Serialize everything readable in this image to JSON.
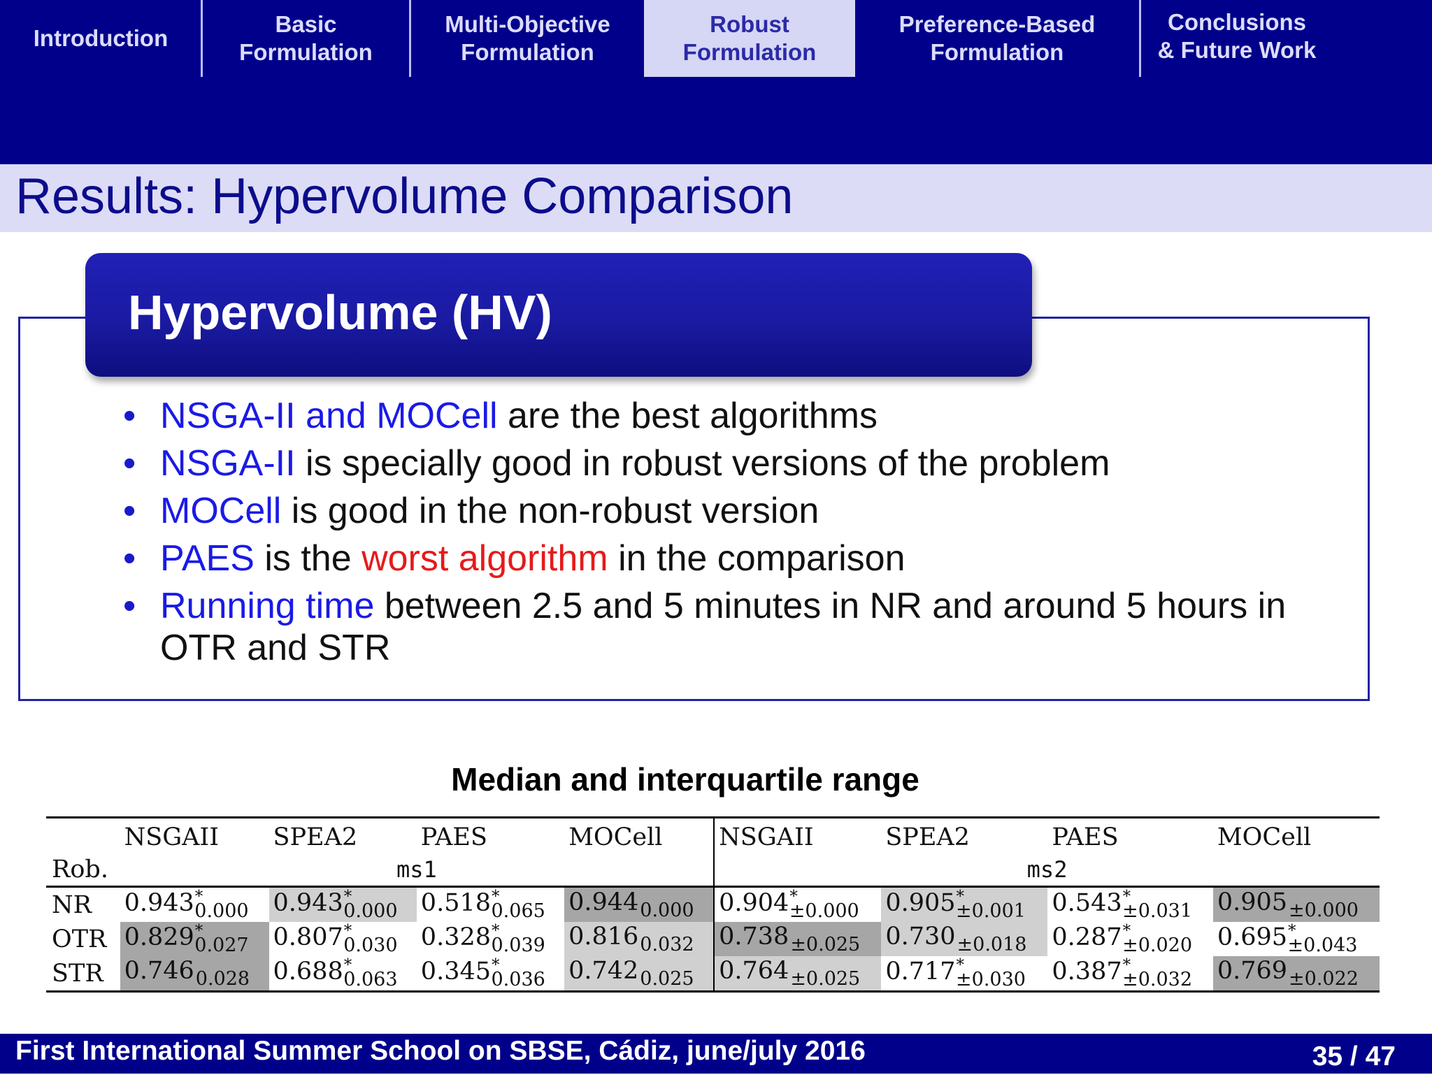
{
  "nav": {
    "tabs": [
      {
        "lines": [
          "Introduction"
        ]
      },
      {
        "lines": [
          "Basic",
          "Formulation"
        ]
      },
      {
        "lines": [
          "Multi-Objective",
          "Formulation"
        ]
      },
      {
        "lines": [
          "Robust",
          "Formulation"
        ],
        "active": true
      },
      {
        "lines": [
          "Preference-Based",
          "Formulation"
        ]
      },
      {
        "lines": [
          "Conclusions",
          "& Future Work"
        ]
      }
    ]
  },
  "slide": {
    "title": "Results: Hypervolume Comparison",
    "block_title": "Hypervolume (HV)",
    "bullets": [
      {
        "parts": [
          {
            "t": "NSGA-II and MOCell",
            "c": "blue"
          },
          {
            "t": " are the best algorithms"
          }
        ]
      },
      {
        "parts": [
          {
            "t": "NSGA-II",
            "c": "blue"
          },
          {
            "t": " is specially good in robust versions of the problem"
          }
        ]
      },
      {
        "parts": [
          {
            "t": "MOCell",
            "c": "blue"
          },
          {
            "t": " is good in the non-robust version"
          }
        ]
      },
      {
        "parts": [
          {
            "t": "PAES",
            "c": "blue"
          },
          {
            "t": " is the "
          },
          {
            "t": "worst algorithm",
            "c": "red"
          },
          {
            "t": " in the comparison"
          }
        ]
      },
      {
        "parts": [
          {
            "t": "Running time",
            "c": "blue"
          },
          {
            "t": " between 2.5 and 5 minutes in NR and around 5 hours in OTR and STR"
          }
        ]
      }
    ]
  },
  "table": {
    "caption": "Median and interquartile range",
    "columns": [
      "NSGAII",
      "SPEA2",
      "PAES",
      "MOCell",
      "NSGAII",
      "SPEA2",
      "PAES",
      "MOCell"
    ],
    "row_header_label": "Rob.",
    "groups": [
      "ms1",
      "ms2"
    ],
    "rows": [
      {
        "label": "NR",
        "cells": [
          {
            "v": "0.943",
            "star": true,
            "iqr": "0.000",
            "shade": 0
          },
          {
            "v": "0.943",
            "star": true,
            "iqr": "0.000",
            "shade": 1
          },
          {
            "v": "0.518",
            "star": true,
            "iqr": "0.065",
            "shade": 0
          },
          {
            "v": "0.944",
            "star": false,
            "iqr": "0.000",
            "shade": 2
          },
          {
            "v": "0.904",
            "star": true,
            "iqr": "±0.000",
            "shade": 0
          },
          {
            "v": "0.905",
            "star": true,
            "iqr": "±0.001",
            "shade": 1
          },
          {
            "v": "0.543",
            "star": true,
            "iqr": "±0.031",
            "shade": 0
          },
          {
            "v": "0.905",
            "star": false,
            "iqr": "±0.000",
            "shade": 2
          }
        ]
      },
      {
        "label": "OTR",
        "cells": [
          {
            "v": "0.829",
            "star": true,
            "iqr": "0.027",
            "shade": 2
          },
          {
            "v": "0.807",
            "star": true,
            "iqr": "0.030",
            "shade": 0
          },
          {
            "v": "0.328",
            "star": true,
            "iqr": "0.039",
            "shade": 0
          },
          {
            "v": "0.816",
            "star": false,
            "iqr": "0.032",
            "shade": 1
          },
          {
            "v": "0.738",
            "star": false,
            "iqr": "±0.025",
            "shade": 2
          },
          {
            "v": "0.730",
            "star": false,
            "iqr": "±0.018",
            "shade": 1
          },
          {
            "v": "0.287",
            "star": true,
            "iqr": "±0.020",
            "shade": 0
          },
          {
            "v": "0.695",
            "star": true,
            "iqr": "±0.043",
            "shade": 0
          }
        ]
      },
      {
        "label": "STR",
        "cells": [
          {
            "v": "0.746",
            "star": false,
            "iqr": "0.028",
            "shade": 2
          },
          {
            "v": "0.688",
            "star": true,
            "iqr": "0.063",
            "shade": 0
          },
          {
            "v": "0.345",
            "star": true,
            "iqr": "0.036",
            "shade": 0
          },
          {
            "v": "0.742",
            "star": false,
            "iqr": "0.025",
            "shade": 1
          },
          {
            "v": "0.764",
            "star": false,
            "iqr": "±0.025",
            "shade": 1
          },
          {
            "v": "0.717",
            "star": true,
            "iqr": "±0.030",
            "shade": 0
          },
          {
            "v": "0.387",
            "star": true,
            "iqr": "±0.032",
            "shade": 0
          },
          {
            "v": "0.769",
            "star": false,
            "iqr": "±0.022",
            "shade": 2
          }
        ]
      }
    ]
  },
  "footer": {
    "text": "First International Summer School on SBSE, Cádiz, june/july 2016",
    "page_current": "35",
    "page_sep": " / ",
    "page_total": "47"
  }
}
